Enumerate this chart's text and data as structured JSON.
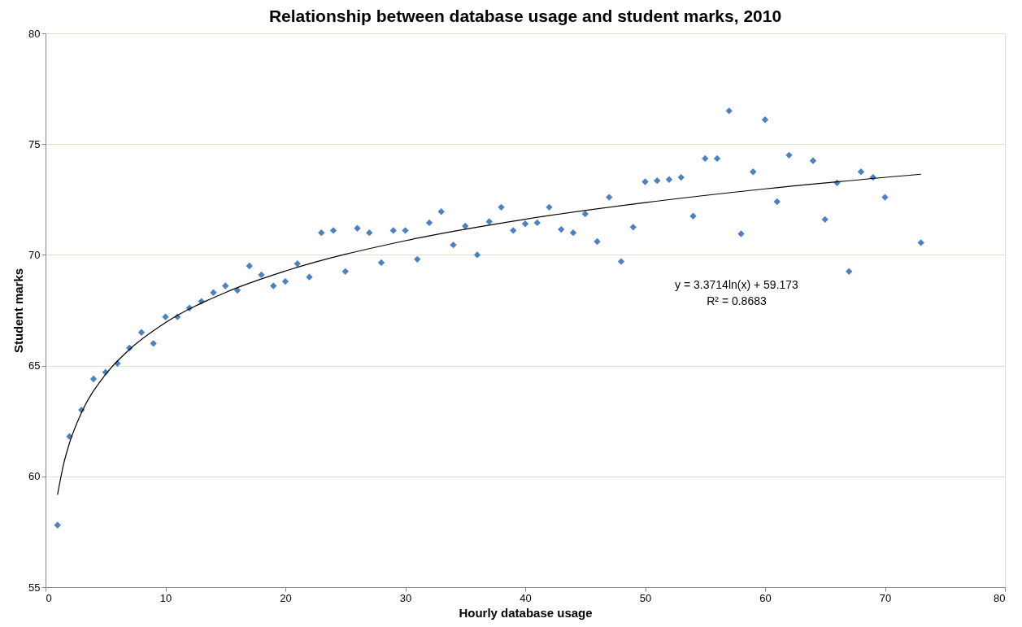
{
  "chart_data": {
    "type": "scatter",
    "title": "Relationship between database usage and student marks, 2010",
    "xlabel": "Hourly database usage",
    "ylabel": "Student marks",
    "xlim": [
      0,
      80
    ],
    "xticks": [
      0,
      10,
      20,
      30,
      40,
      50,
      60,
      70,
      80
    ],
    "ylim": [
      55,
      80
    ],
    "yticks": [
      55,
      60,
      65,
      70,
      75,
      80
    ],
    "grid": "y",
    "legend": false,
    "marker": "diamond",
    "annotations": [
      "y = 3.3714ln(x) + 59.173",
      "R² = 0.8683"
    ],
    "series": [
      {
        "type": "scatter",
        "color": "#4f81bd",
        "x": [
          1,
          2,
          3,
          4,
          5,
          6,
          7,
          8,
          9,
          10,
          11,
          12,
          13,
          14,
          15,
          16,
          17,
          18,
          19,
          20,
          21,
          22,
          23,
          24,
          25,
          26,
          27,
          28,
          29,
          30,
          31,
          32,
          33,
          34,
          35,
          36,
          37,
          38,
          39,
          40,
          41,
          42,
          43,
          44,
          45,
          46,
          47,
          48,
          49,
          50,
          51,
          52,
          53,
          54,
          55,
          56,
          57,
          58,
          59,
          60,
          61,
          62,
          64,
          65,
          66,
          67,
          68,
          69,
          70,
          73
        ],
        "values": [
          57.8,
          61.8,
          63.0,
          64.4,
          64.7,
          65.1,
          65.8,
          66.5,
          66.0,
          67.2,
          67.2,
          67.6,
          67.9,
          68.3,
          68.6,
          68.4,
          69.5,
          69.1,
          68.6,
          68.8,
          69.6,
          69.0,
          71.0,
          71.1,
          69.25,
          71.2,
          71.0,
          69.65,
          71.1,
          71.1,
          69.8,
          71.45,
          71.95,
          70.45,
          71.3,
          70.0,
          71.5,
          72.15,
          71.1,
          71.4,
          71.45,
          72.15,
          71.15,
          71.0,
          71.85,
          70.6,
          72.6,
          69.7,
          71.25,
          73.3,
          73.35,
          73.4,
          73.5,
          71.75,
          74.35,
          74.35,
          76.5,
          70.95,
          73.75,
          76.1,
          72.4,
          74.5,
          74.25,
          71.6,
          73.25,
          69.25,
          73.75,
          73.5,
          72.6,
          70.55
        ]
      },
      {
        "type": "line",
        "color": "#000000",
        "line_style": "solid",
        "marker": "none",
        "x": [
          1,
          1.5,
          2,
          3,
          5,
          7,
          10,
          15,
          20,
          30,
          40,
          50,
          60,
          73
        ],
        "values": [
          59.17,
          60.54,
          61.51,
          62.88,
          64.6,
          65.73,
          66.94,
          68.3,
          69.27,
          70.64,
          71.61,
          72.36,
          72.98,
          73.64
        ]
      }
    ]
  }
}
